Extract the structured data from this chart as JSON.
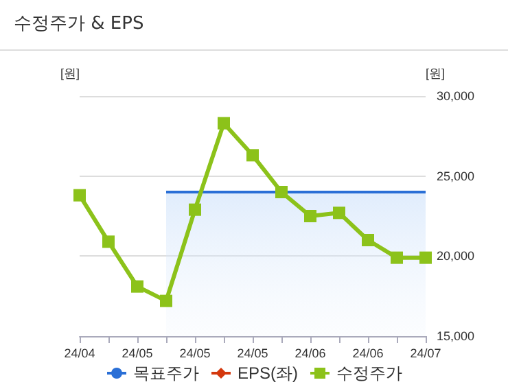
{
  "chart_data": {
    "type": "line",
    "title": "수정주가 & EPS",
    "ylabel": "[원]",
    "y2label": "[원]",
    "categories": [
      "24/04",
      null,
      "24/05",
      null,
      "24/05",
      null,
      "24/05",
      null,
      "24/06",
      null,
      "24/06",
      null,
      "24/07"
    ],
    "series": [
      {
        "name": "목표주가",
        "type": "area",
        "axis": "y2",
        "color": "#2a6fd6",
        "values": [
          null,
          null,
          null,
          24000,
          24000,
          24000,
          24000,
          24000,
          24000,
          24000,
          24000,
          24000,
          24000
        ]
      },
      {
        "name": "EPS(좌)",
        "type": "line",
        "color": "#d4380d",
        "marker": "diamond",
        "values": [
          null,
          null,
          null,
          null,
          null,
          null,
          null,
          null,
          null,
          null,
          null,
          null,
          null
        ]
      },
      {
        "name": "수정주가",
        "axis": "y2",
        "color": "#8cc21a",
        "marker": "square",
        "values": [
          23800,
          20900,
          18100,
          17200,
          22900,
          28300,
          26300,
          24000,
          22500,
          22700,
          21000,
          19900,
          19900
        ]
      }
    ],
    "y2lim": [
      15000,
      30000
    ],
    "y2ticks": [
      {
        "value": 15000,
        "label": "15,000"
      },
      {
        "value": 20000,
        "label": "20,000"
      },
      {
        "value": 25000,
        "label": "25,000"
      },
      {
        "value": 30000,
        "label": "30,000"
      }
    ],
    "grid": "y",
    "legend": "bottom"
  }
}
